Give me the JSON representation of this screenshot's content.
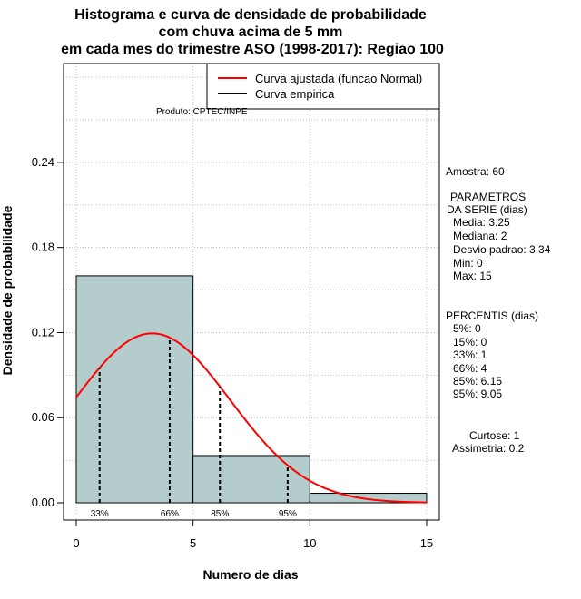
{
  "title_lines": [
    "Histograma e curva de densidade de probabilidade",
    "com chuva acima de 5 mm",
    "em cada mes do trimestre ASO (1998-2017): Regiao 100"
  ],
  "credit": "Produto: CPTEC/INPE",
  "legend": {
    "fitted": "Curva ajustada (funcao Normal)",
    "empirical": "Curva empirica"
  },
  "colors": {
    "bar_fill": "#b4cccb",
    "fitted_curve": "#ff0000",
    "grid": "#bebebe"
  },
  "side_panel": {
    "sample": "Amostra: 60",
    "params_header_1": "PARAMETROS",
    "params_header_2": "DA SERIE (dias)",
    "mean": "Media: 3.25",
    "median": "Mediana: 2",
    "sd": "Desvio padrao: 3.34",
    "min": "Min: 0",
    "max": "Max: 15",
    "percentiles_header": "PERCENTIS (dias)",
    "p5": "5%: 0",
    "p15": "15%: 0",
    "p33": "33%: 1",
    "p66": "66%: 4",
    "p85": "85%: 6.15",
    "p95": "95%: 9.05",
    "kurtosis": "Curtose: 1",
    "skewness": "Assimetria: 0.2"
  },
  "chart_data": {
    "type": "bar",
    "title": "Histograma e curva de densidade de probabilidade com chuva acima de 5 mm em cada mes do trimestre ASO (1998-2017): Regiao 100",
    "xlabel": "Numero de dias",
    "ylabel": "Densidade de probabilidade",
    "xlim": [
      0,
      15
    ],
    "ylim": [
      0,
      0.3
    ],
    "xticks": [
      0,
      5,
      10,
      15
    ],
    "xtick_labels": [
      "0",
      "5",
      "10",
      "15"
    ],
    "yticks": [
      0,
      0.06,
      0.12,
      0.18,
      0.24
    ],
    "ytick_labels": [
      "0.00",
      "0.06",
      "0.12",
      "0.18",
      "0.24"
    ],
    "grid": true,
    "bins": [
      {
        "from": 0,
        "to": 5,
        "density": 0.16
      },
      {
        "from": 5,
        "to": 10,
        "density": 0.0333
      },
      {
        "from": 10,
        "to": 15,
        "density": 0.0067
      }
    ],
    "fitted_normal": {
      "mean": 3.25,
      "sd": 3.34,
      "x_range": [
        0,
        15
      ]
    },
    "percentile_lines": [
      {
        "label": "33%",
        "x": 1
      },
      {
        "label": "66%",
        "x": 4
      },
      {
        "label": "85%",
        "x": 6.15
      },
      {
        "label": "95%",
        "x": 9.05
      }
    ],
    "legend_position": "top-right"
  }
}
